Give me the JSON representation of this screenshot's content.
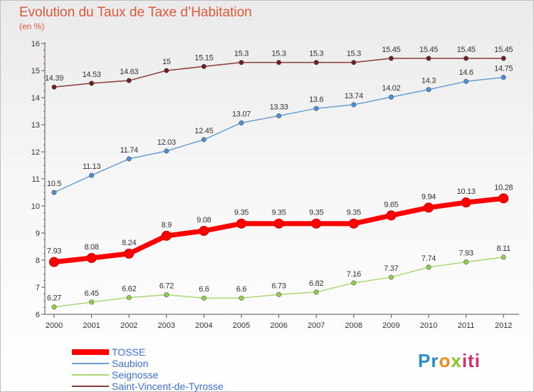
{
  "title": "Evolution du Taux de Taxe d’Habitation",
  "subtitle": "(en %)",
  "logo": "Proxiti",
  "chart_data": {
    "type": "line",
    "title": "Evolution du Taux de Taxe d’Habitation",
    "subtitle": "(en %)",
    "xlabel": "",
    "ylabel": "",
    "x": [
      "2000",
      "2001",
      "2002",
      "2003",
      "2004",
      "2005",
      "2006",
      "2007",
      "2008",
      "2009",
      "2010",
      "2011",
      "2012"
    ],
    "ylim": [
      6,
      16
    ],
    "yticks": [
      "6",
      "7",
      "8",
      "9",
      "10",
      "11",
      "12",
      "13",
      "14",
      "15",
      "16"
    ],
    "grid": false,
    "legend": "bottom-left",
    "series": [
      {
        "name": "TOSSE",
        "color": "#ff0000",
        "marker_color": "#ff0000",
        "values": [
          7.93,
          8.08,
          8.24,
          8.9,
          9.08,
          9.35,
          9.35,
          9.35,
          9.35,
          9.65,
          9.94,
          10.13,
          10.28
        ],
        "labels": [
          "7.93",
          "8.08",
          "8.24",
          "8.9",
          "9.08",
          "9.35",
          "9.35",
          "9.35",
          "9.35",
          "9.65",
          "9.94",
          "10.13",
          "10.28"
        ]
      },
      {
        "name": "Saubion",
        "color": "#6a9fd0",
        "marker_color": "#4a90d9",
        "values": [
          10.5,
          11.13,
          11.74,
          12.03,
          12.45,
          13.07,
          13.33,
          13.6,
          13.74,
          14.02,
          14.3,
          14.6,
          14.75
        ],
        "labels": [
          "10.5",
          "11.13",
          "11.74",
          "12.03",
          "12.45",
          "13.07",
          "13.33",
          "13.6",
          "13.74",
          "14.02",
          "14.3",
          "14.6",
          "14.75"
        ]
      },
      {
        "name": "Seignosse",
        "color": "#a8d878",
        "marker_color": "#8fd24a",
        "values": [
          6.27,
          6.45,
          6.62,
          6.72,
          6.6,
          6.6,
          6.73,
          6.82,
          7.16,
          7.37,
          7.74,
          7.93,
          8.11
        ],
        "labels": [
          "6.27",
          "6.45",
          "6.62",
          "6.72",
          "6.6",
          "6.6",
          "6.73",
          "6.82",
          "7.16",
          "7.37",
          "7.74",
          "7.93",
          "8.11"
        ]
      },
      {
        "name": "Saint-Vincent-de-Tyrosse",
        "color": "#8b3a3a",
        "marker_color": "#6b1f1f",
        "values": [
          14.39,
          14.53,
          14.63,
          15,
          15.15,
          15.3,
          15.3,
          15.3,
          15.3,
          15.45,
          15.45,
          15.45,
          15.45
        ],
        "labels": [
          "14.39",
          "14.53",
          "14.63",
          "15",
          "15.15",
          "15.3",
          "15.3",
          "15.3",
          "15.3",
          "15.45",
          "15.45",
          "15.45",
          "15.45"
        ]
      }
    ]
  }
}
